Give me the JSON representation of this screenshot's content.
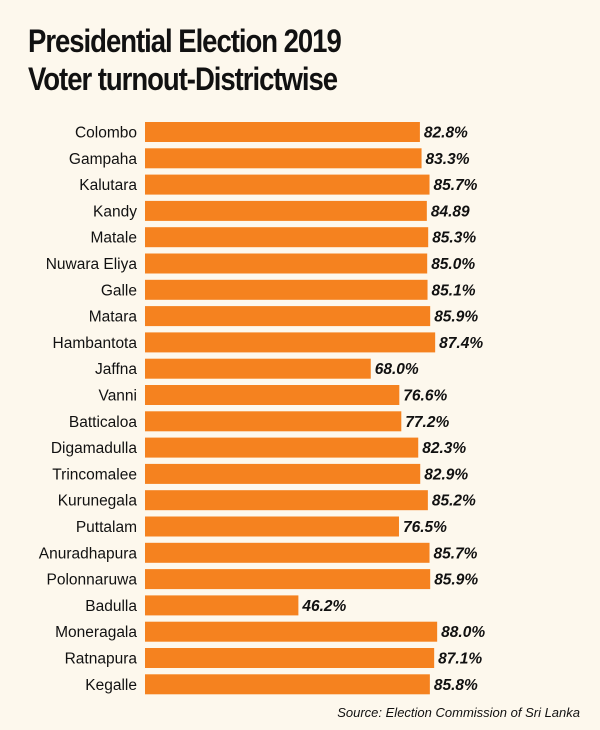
{
  "chart_data": {
    "type": "bar",
    "orientation": "horizontal",
    "title": "Presidential Election 2019",
    "subtitle": "Voter turnout-Districtwise",
    "categories": [
      "Colombo",
      "Gampaha",
      "Kalutara",
      "Kandy",
      "Matale",
      "Nuwara Eliya",
      "Galle",
      "Matara",
      "Hambantota",
      "Jaffna",
      "Vanni",
      "Batticaloa",
      "Digamadulla",
      "Trincomalee",
      "Kurunegala",
      "Puttalam",
      "Anuradhapura",
      "Polonnaruwa",
      "Badulla",
      "Moneragala",
      "Ratnapura",
      "Kegalle"
    ],
    "values": [
      82.8,
      83.3,
      85.7,
      84.89,
      85.3,
      85.0,
      85.1,
      85.9,
      87.4,
      68.0,
      76.6,
      77.2,
      82.3,
      82.9,
      85.2,
      76.5,
      85.7,
      85.9,
      46.2,
      88.0,
      87.1,
      85.8
    ],
    "value_labels": [
      "82.8%",
      "83.3%",
      "85.7%",
      "84.89",
      "85.3%",
      "85.0%",
      "85.1%",
      "85.9%",
      "87.4%",
      "68.0%",
      "76.6%",
      "77.2%",
      "82.3%",
      "82.9%",
      "85.2%",
      "76.5%",
      "85.7%",
      "85.9%",
      "46.2%",
      "88.0%",
      "87.1%",
      "85.8%"
    ],
    "bar_color": "#f5821f",
    "background_color": "#fdf8ed",
    "grid": false,
    "legend": "none",
    "source": "Source: Election Commission of Sri Lanka"
  }
}
